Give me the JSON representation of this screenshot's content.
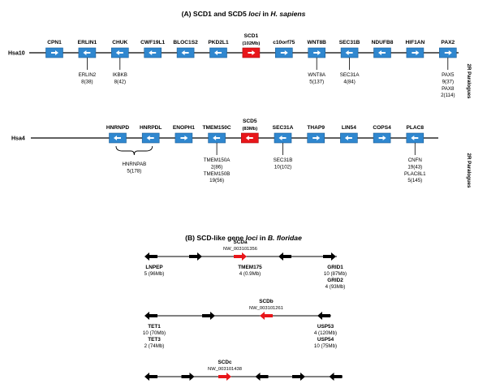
{
  "panel_a": {
    "title": {
      "prefix": "(A) SCD1 and SCD5 ",
      "italic1": "loci",
      "mid": " in ",
      "italic2": "H. sapiens"
    },
    "side_label": "2R Paralogues",
    "rows": [
      {
        "chromosome": "Hsa10",
        "genes": [
          {
            "name": "CPN1",
            "dir": "right",
            "color": "blue"
          },
          {
            "name": "ERLIN1",
            "dir": "left",
            "color": "blue",
            "paralogs": [
              "ERLIN2",
              "8(38)"
            ]
          },
          {
            "name": "CHUK",
            "dir": "left",
            "color": "blue",
            "paralogs": [
              "IKBKB",
              "8(42)"
            ]
          },
          {
            "name": "CWF19L1",
            "dir": "left",
            "color": "blue"
          },
          {
            "name": "BLOC1S2",
            "dir": "left",
            "color": "blue"
          },
          {
            "name": "PKD2L1",
            "dir": "left",
            "color": "blue"
          },
          {
            "name": "SCD1",
            "sub": "(102Mb)",
            "dir": "right",
            "color": "red"
          },
          {
            "name": "c10orf75",
            "dir": "right",
            "color": "blue"
          },
          {
            "name": "WNT8B",
            "dir": "right",
            "color": "blue",
            "paralogs": [
              "WNT8A",
              "5(137)"
            ]
          },
          {
            "name": "SEC31B",
            "dir": "left",
            "color": "blue",
            "paralogs": [
              "SEC31A",
              "4(84)"
            ]
          },
          {
            "name": "NDUFB8",
            "dir": "left",
            "color": "blue"
          },
          {
            "name": "HIF1AN",
            "dir": "right",
            "color": "blue"
          },
          {
            "name": "PAX2",
            "dir": "right",
            "color": "blue",
            "paralogs": [
              "PAX5",
              "9(37)",
              "PAX8",
              "2(114)"
            ]
          }
        ]
      },
      {
        "chromosome": "Hsa4",
        "genes": [
          {
            "name": "HNRNPD",
            "dir": "left",
            "color": "blue"
          },
          {
            "name": "HNRPDL",
            "dir": "left",
            "color": "blue"
          },
          {
            "name": "ENOPH1",
            "dir": "right",
            "color": "blue"
          },
          {
            "name": "TMEM150C",
            "dir": "left",
            "color": "blue",
            "paralogs": [
              "TMEM150A",
              "2(86)",
              "TMEM150B",
              "19(56)"
            ]
          },
          {
            "name": "SCD5",
            "sub": "(83Mb)",
            "dir": "left",
            "color": "red"
          },
          {
            "name": "SEC31A",
            "dir": "left",
            "color": "blue",
            "paralogs": [
              "SEC31B",
              "10(102)"
            ]
          },
          {
            "name": "THAP9",
            "dir": "right",
            "color": "blue"
          },
          {
            "name": "LIN54",
            "dir": "left",
            "color": "blue"
          },
          {
            "name": "COPS4",
            "dir": "right",
            "color": "blue"
          },
          {
            "name": "PLAC8",
            "dir": "left",
            "color": "blue",
            "paralogs": [
              "CNFN",
              "19(43)",
              "PLAC8L1",
              "5(145)"
            ]
          }
        ],
        "bracket_paralogs": [
          "HNRNPAB",
          "5(178)"
        ]
      }
    ]
  },
  "panel_b": {
    "title": {
      "prefix": "(B) SCD-like gene ",
      "italic1": "loci",
      "mid": " in ",
      "italic2": "B. floridae"
    },
    "loci": [
      {
        "name": "SCDa",
        "accession": "NW_003101356",
        "arrows": [
          "left",
          "right",
          "right",
          "left",
          "right"
        ],
        "annotations": [
          {
            "lines": [
              "LNPEP",
              "5 (96Mb)"
            ],
            "bold": [
              true,
              false
            ]
          },
          {
            "lines": [
              "TMEM175",
              "4  (0.9Mb)"
            ],
            "bold": [
              true,
              false
            ]
          },
          {
            "lines": [
              "GRID1",
              "10 (87Mb)",
              "GRID2",
              "4 (93Mb)"
            ],
            "bold": [
              true,
              false,
              true,
              false
            ]
          }
        ]
      },
      {
        "name": "SCDb",
        "accession": "NW_003101261",
        "arrows": [
          "left",
          "right",
          "left",
          "left"
        ],
        "annotations": [
          {
            "lines": [
              "TET1",
              "10 (70Mb)",
              "TET3",
              "2 (74Mb)"
            ],
            "bold": [
              true,
              false,
              true,
              false
            ]
          },
          {
            "lines": [
              "USP53",
              "4 (120Mb)",
              "USP54",
              "10 (75Mb)"
            ],
            "bold": [
              true,
              false,
              true,
              false
            ]
          }
        ]
      },
      {
        "name": "SCDc",
        "accession": "NW_003101438",
        "arrows": [
          "left",
          "right",
          "right",
          "left",
          "right",
          "left"
        ],
        "annotations": []
      }
    ]
  },
  "colors": {
    "blue_gene": "#2f87cf",
    "blue_edge": "#1c5e96",
    "red_gene": "#e8161a",
    "red_edge": "#a80d10",
    "line": "#000000"
  }
}
